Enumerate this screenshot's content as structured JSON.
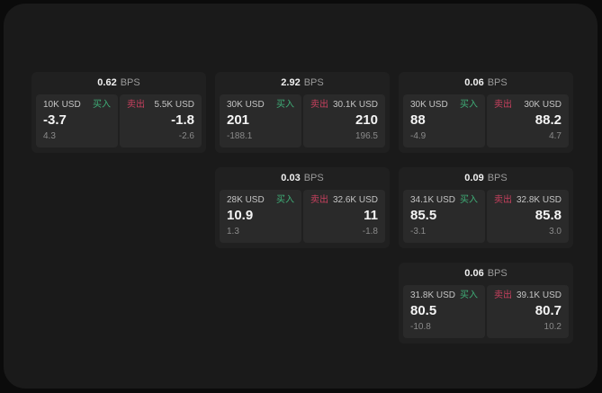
{
  "window": {
    "bps_unit": "BPS"
  },
  "labels": {
    "buy": "买入",
    "sell": "卖出"
  },
  "colors": {
    "buy_green": "#3fae77",
    "sell_red": "#c7405e",
    "panel_bg": "#1a1a1a",
    "card_bg": "#202020",
    "subpanel_bg": "#2a2a2a"
  },
  "cards": [
    {
      "bps": "0.62",
      "buy": {
        "amount": "10K USD",
        "price": "-3.7",
        "delta": "4.3"
      },
      "sell": {
        "amount": "5.5K USD",
        "price": "-1.8",
        "delta": "-2.6"
      }
    },
    {
      "bps": "2.92",
      "buy": {
        "amount": "30K USD",
        "price": "201",
        "delta": "-188.1"
      },
      "sell": {
        "amount": "30.1K USD",
        "price": "210",
        "delta": "196.5"
      }
    },
    {
      "bps": "0.06",
      "buy": {
        "amount": "30K USD",
        "price": "88",
        "delta": "-4.9"
      },
      "sell": {
        "amount": "30K USD",
        "price": "88.2",
        "delta": "4.7"
      }
    },
    {
      "bps": "0.03",
      "buy": {
        "amount": "28K USD",
        "price": "10.9",
        "delta": "1.3"
      },
      "sell": {
        "amount": "32.6K USD",
        "price": "11",
        "delta": "-1.8"
      }
    },
    {
      "bps": "0.09",
      "buy": {
        "amount": "34.1K USD",
        "price": "85.5",
        "delta": "-3.1"
      },
      "sell": {
        "amount": "32.8K USD",
        "price": "85.8",
        "delta": "3.0"
      }
    },
    {
      "bps": "0.06",
      "buy": {
        "amount": "31.8K USD",
        "price": "80.5",
        "delta": "-10.8"
      },
      "sell": {
        "amount": "39.1K USD",
        "price": "80.7",
        "delta": "10.2"
      }
    }
  ]
}
